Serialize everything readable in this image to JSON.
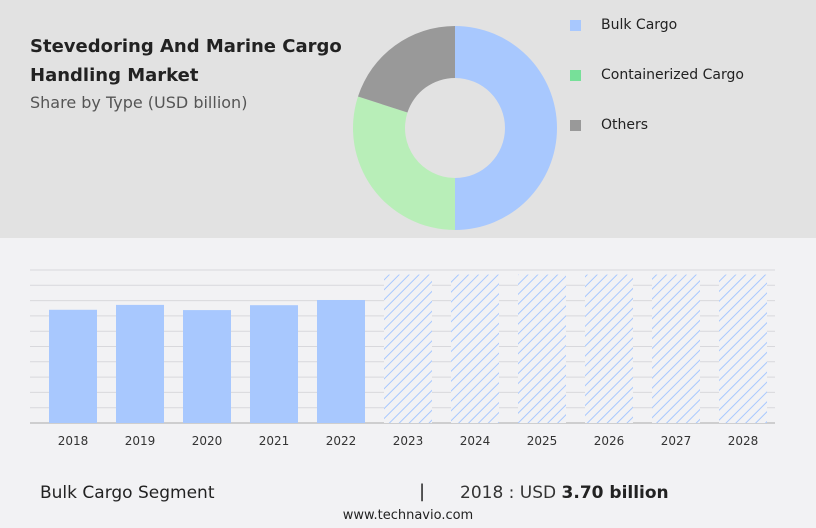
{
  "header": {
    "title": "Stevedoring And Marine Cargo Handling Market",
    "subtitle": "Share by Type (USD billion)"
  },
  "chart_data": [
    {
      "type": "pie",
      "variant": "donut",
      "legend_position": "right",
      "labels": [
        "Bulk Cargo",
        "Containerized Cargo",
        "Others"
      ],
      "values": [
        50,
        30,
        20
      ],
      "colors": [
        "#a8c8fe",
        "#b8eeb8",
        "#999999"
      ],
      "legend_colors": [
        "#a8c8fe",
        "#77e099",
        "#999999"
      ]
    },
    {
      "type": "bar",
      "categories": [
        "2018",
        "2019",
        "2020",
        "2021",
        "2022",
        "2023",
        "2024",
        "2025",
        "2026",
        "2027",
        "2028"
      ],
      "values": [
        3.7,
        3.86,
        3.69,
        3.85,
        4.02,
        null,
        null,
        null,
        null,
        null,
        null
      ],
      "forecast_categories": [
        "2023",
        "2024",
        "2025",
        "2026",
        "2027",
        "2028"
      ],
      "ylim": [
        0,
        5
      ],
      "grid": true,
      "color": "#a8c8fe"
    }
  ],
  "footer": {
    "segment": "Bulk Cargo Segment",
    "separator": "|",
    "year_label": "2018 : USD",
    "value": "3.70 billion",
    "site": "www.technavio.com"
  }
}
